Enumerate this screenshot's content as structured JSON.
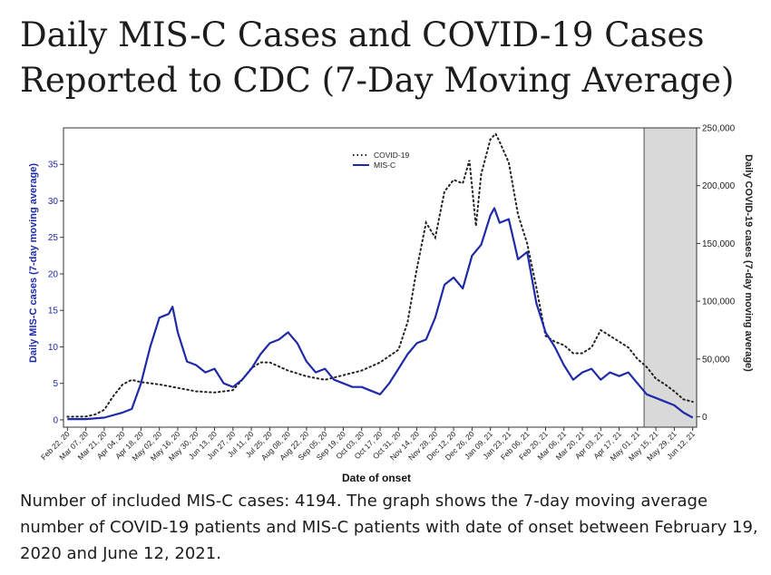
{
  "page": {
    "title": "Daily MIS-C Cases and COVID-19 Cases Reported to CDC (7-Day Moving Average)",
    "caption": "Number of included MIS-C cases: 4194. The graph shows the 7-day moving average number of COVID-19 patients and MIS-C patients with date of onset between February 19, 2020 and June 12, 2021."
  },
  "chart_data": {
    "type": "line",
    "xlabel": "Date of onset",
    "ylabel_left": "Daily MIS-C cases (7-day moving average)",
    "ylabel_right": "Daily COVID-19 cases (7-day moving average)",
    "y_left_ticks": [
      "0",
      "5",
      "10",
      "15",
      "20",
      "25",
      "30",
      "35"
    ],
    "y_right_ticks": [
      "0",
      "50,000",
      "100,000",
      "150,000",
      "200,000",
      "250,000"
    ],
    "ylim_left": [
      -1,
      40
    ],
    "ylim_right": [
      -9000,
      250000
    ],
    "x_tick_labels": [
      "Feb 22, 20",
      "Mar 07, 20",
      "Mar 21, 20",
      "Apr 04, 20",
      "Apr 18, 20",
      "May 02, 20",
      "May 16, 20",
      "May 30, 20",
      "Jun 13, 20",
      "Jun 27, 20",
      "Jul 11, 20",
      "Jul 25, 20",
      "Aug 08, 20",
      "Aug 22, 20",
      "Sep 05, 20",
      "Sep 19, 20",
      "Oct 03, 20",
      "Oct 17, 20",
      "Oct 31, 20",
      "Nov 14, 20",
      "Nov 28, 20",
      "Dec 12, 20",
      "Dec 26, 20",
      "Jan 09, 21",
      "Jan 23, 21",
      "Feb 06, 21",
      "Feb 20, 21",
      "Mar 06, 21",
      "Mar 20, 21",
      "Apr 03, 21",
      "Apr 17, 21",
      "May 01, 21",
      "May 15, 21",
      "May 29, 21",
      "Jun 12, 21"
    ],
    "x_range": [
      "Feb 19, 20",
      "Jun 15, 21"
    ],
    "shaded_region_start": "May 06, 21",
    "grid": false,
    "legend_position": "top-center",
    "colors": {
      "misc": "#1f2aa8",
      "covid": "#222222",
      "shade": "#d9d9d9"
    },
    "series": [
      {
        "name": "COVID-19",
        "style": "dotted",
        "axis": "right",
        "x": [
          "Feb 22, 20",
          "Mar 07, 20",
          "Mar 14, 20",
          "Mar 21, 20",
          "Mar 28, 20",
          "Apr 04, 20",
          "Apr 11, 20",
          "Apr 18, 20",
          "May 02, 20",
          "May 16, 20",
          "May 30, 20",
          "Jun 13, 20",
          "Jun 27, 20",
          "Jul 04, 20",
          "Jul 11, 20",
          "Jul 18, 20",
          "Jul 25, 20",
          "Aug 08, 20",
          "Aug 22, 20",
          "Sep 05, 20",
          "Sep 19, 20",
          "Oct 03, 20",
          "Oct 17, 20",
          "Oct 31, 20",
          "Nov 07, 20",
          "Nov 14, 20",
          "Nov 21, 20",
          "Nov 28, 20",
          "Dec 05, 20",
          "Dec 12, 20",
          "Dec 19, 20",
          "Dec 24, 20",
          "Dec 29, 20",
          "Jan 02, 21",
          "Jan 09, 21",
          "Jan 13, 21",
          "Jan 16, 21",
          "Jan 23, 21",
          "Jan 30, 21",
          "Feb 06, 21",
          "Feb 13, 21",
          "Feb 20, 21",
          "Feb 27, 21",
          "Mar 06, 21",
          "Mar 13, 21",
          "Mar 20, 21",
          "Mar 27, 21",
          "Apr 03, 21",
          "Apr 10, 21",
          "Apr 17, 21",
          "Apr 24, 21",
          "May 01, 21",
          "May 08, 21",
          "May 15, 21",
          "May 22, 21",
          "May 29, 21",
          "Jun 05, 21",
          "Jun 12, 21"
        ],
        "values": [
          0,
          200,
          2000,
          6000,
          18000,
          28000,
          32000,
          30000,
          28000,
          25000,
          22000,
          21000,
          23000,
          32000,
          42000,
          47000,
          47000,
          40000,
          35000,
          32000,
          36000,
          40000,
          47000,
          58000,
          82000,
          128000,
          168000,
          155000,
          195000,
          205000,
          202000,
          222000,
          165000,
          210000,
          240000,
          245000,
          238000,
          220000,
          175000,
          150000,
          112000,
          70000,
          65000,
          62000,
          55000,
          55000,
          60000,
          75000,
          70000,
          65000,
          60000,
          50000,
          43000,
          33000,
          28000,
          22000,
          15000,
          13000
        ]
      },
      {
        "name": "MIS-C",
        "style": "solid",
        "axis": "left",
        "x": [
          "Feb 22, 20",
          "Mar 07, 20",
          "Mar 21, 20",
          "Apr 04, 20",
          "Apr 11, 20",
          "Apr 18, 20",
          "Apr 25, 20",
          "May 02, 20",
          "May 09, 20",
          "May 12, 20",
          "May 16, 20",
          "May 23, 20",
          "May 30, 20",
          "Jun 06, 20",
          "Jun 13, 20",
          "Jun 20, 20",
          "Jun 27, 20",
          "Jul 04, 20",
          "Jul 11, 20",
          "Jul 18, 20",
          "Jul 25, 20",
          "Aug 01, 20",
          "Aug 08, 20",
          "Aug 15, 20",
          "Aug 22, 20",
          "Aug 29, 20",
          "Sep 05, 20",
          "Sep 12, 20",
          "Sep 19, 20",
          "Sep 26, 20",
          "Oct 03, 20",
          "Oct 10, 20",
          "Oct 17, 20",
          "Oct 24, 20",
          "Oct 31, 20",
          "Nov 07, 20",
          "Nov 14, 20",
          "Nov 21, 20",
          "Nov 28, 20",
          "Dec 05, 20",
          "Dec 12, 20",
          "Dec 19, 20",
          "Dec 26, 20",
          "Jan 02, 21",
          "Jan 09, 21",
          "Jan 12, 21",
          "Jan 16, 21",
          "Jan 23, 21",
          "Jan 30, 21",
          "Feb 06, 21",
          "Feb 13, 21",
          "Feb 20, 21",
          "Feb 27, 21",
          "Mar 06, 21",
          "Mar 13, 21",
          "Mar 20, 21",
          "Mar 27, 21",
          "Apr 03, 21",
          "Apr 10, 21",
          "Apr 17, 21",
          "Apr 24, 21",
          "May 01, 21",
          "May 08, 21",
          "May 15, 21",
          "May 22, 21",
          "May 29, 21",
          "Jun 05, 21",
          "Jun 12, 21"
        ],
        "values": [
          0.1,
          0.1,
          0.3,
          1.0,
          1.5,
          5.0,
          10.0,
          14.0,
          14.5,
          15.5,
          12.0,
          8.0,
          7.5,
          6.5,
          7.0,
          5.0,
          4.5,
          5.5,
          7.0,
          9.0,
          10.5,
          11.0,
          12.0,
          10.5,
          8.0,
          6.5,
          7.0,
          5.5,
          5.0,
          4.5,
          4.5,
          4.0,
          3.5,
          5.0,
          7.0,
          9.0,
          10.5,
          11.0,
          14.0,
          18.5,
          19.5,
          18.0,
          22.5,
          24.0,
          28.0,
          29.0,
          27.0,
          27.5,
          22.0,
          23.0,
          16.0,
          12.0,
          10.0,
          7.5,
          5.5,
          6.5,
          7.0,
          5.5,
          6.5,
          6.0,
          6.5,
          5.0,
          3.5,
          3.0,
          2.5,
          2.0,
          1.0,
          0.3
        ]
      }
    ]
  }
}
